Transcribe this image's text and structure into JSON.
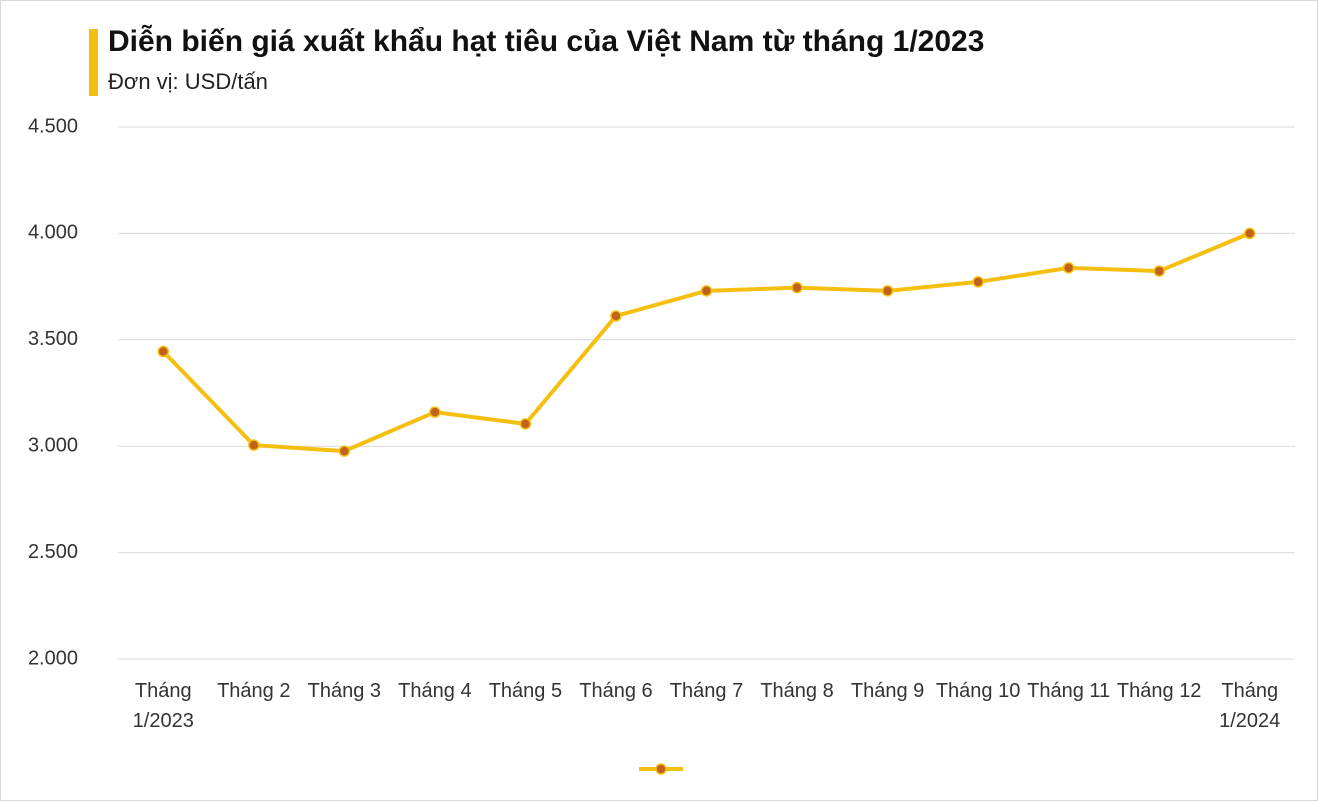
{
  "chart_data": {
    "type": "line",
    "title": "Diễn biến giá xuất khẩu hạt tiêu của Việt Nam từ tháng 1/2023",
    "subtitle": "Đơn vị: USD/tấn",
    "categories": [
      "Tháng 1/2023",
      "Tháng 2",
      "Tháng 3",
      "Tháng 4",
      "Tháng 5",
      "Tháng 6",
      "Tháng 7",
      "Tháng 8",
      "Tháng 9",
      "Tháng 10",
      "Tháng 11",
      "Tháng 12",
      "Tháng 1/2024"
    ],
    "series": [
      {
        "color": "#f5bf0f",
        "marker_color": "#c0621a",
        "values": [
          3445,
          3005,
          2977,
          3160,
          3105,
          3612,
          3730,
          3745,
          3730,
          3772,
          3838,
          3823,
          4000
        ]
      }
    ],
    "ylim": [
      2000,
      4500
    ],
    "yticks": [
      {
        "value": 2000,
        "label": "2.000"
      },
      {
        "value": 2500,
        "label": "2.500"
      },
      {
        "value": 3000,
        "label": "3.000"
      },
      {
        "value": 3500,
        "label": "3.500"
      },
      {
        "value": 4000,
        "label": "4.000"
      },
      {
        "value": 4500,
        "label": "4.500"
      }
    ],
    "grid": true,
    "legend": "bottom"
  }
}
